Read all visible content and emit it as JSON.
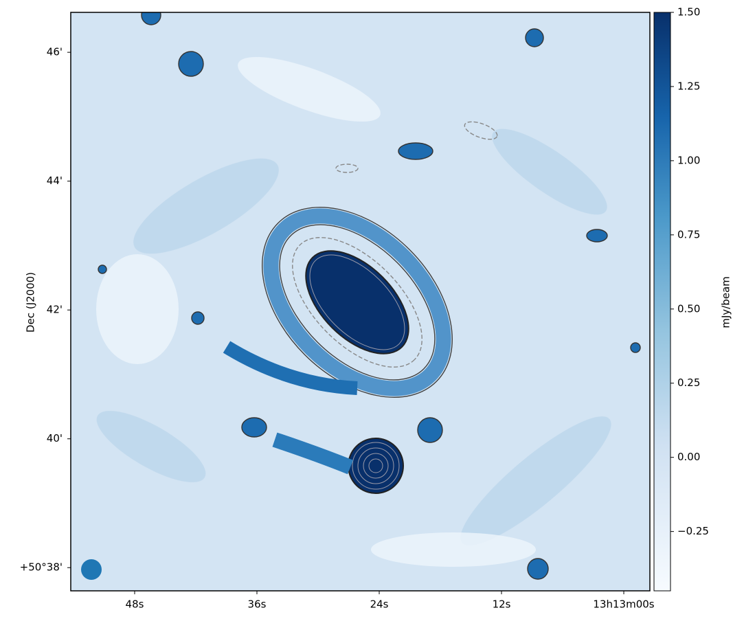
{
  "chart_data": {
    "type": "image",
    "xlabel": null,
    "ylabel": "Dec (J2000)",
    "xlim": [
      54.27,
      -2.56
    ],
    "xticks": [
      {
        "value": 48,
        "label": "48s"
      },
      {
        "value": 36,
        "label": "36s"
      },
      {
        "value": 24,
        "label": "24s"
      },
      {
        "value": 12,
        "label": "12s"
      },
      {
        "value": 0,
        "label": "13h13m00s"
      }
    ],
    "ylim": [
      37.64,
      46.62
    ],
    "yticks": [
      {
        "value": 38,
        "label": "+50°38'"
      },
      {
        "value": 40,
        "label": "40'"
      },
      {
        "value": 42,
        "label": "42'"
      },
      {
        "value": 44,
        "label": "44'"
      },
      {
        "value": 46,
        "label": "46'"
      }
    ],
    "colorbar_label": "mJy/beam",
    "clim": [
      -0.45,
      1.5
    ],
    "cticks": [
      {
        "value": -0.25,
        "label": "−0.25"
      },
      {
        "value": 0,
        "label": "0.00"
      },
      0.25,
      {
        "value": 0.5,
        "label": "0.50"
      },
      0.75,
      {
        "value": 1,
        "label": "1.00"
      },
      1.25,
      {
        "value": 1.5,
        "label": "1.50"
      }
    ]
  }
}
